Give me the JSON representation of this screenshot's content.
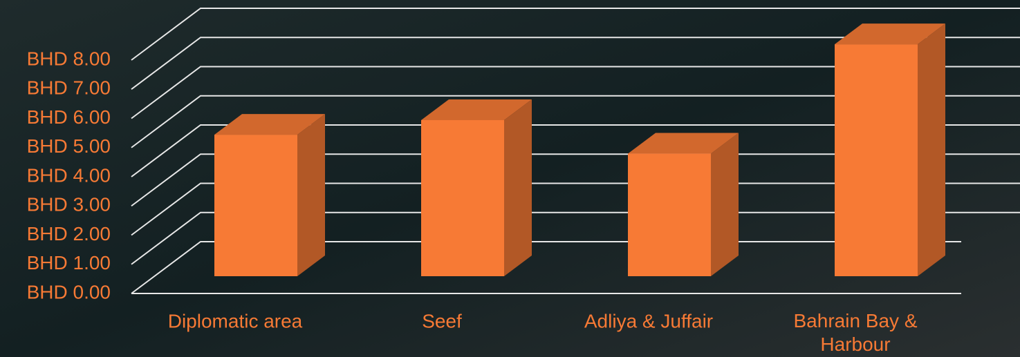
{
  "chart_data": {
    "type": "bar3d",
    "categories": [
      "Diplomatic area",
      "Seef",
      "Adliya & Juffair",
      "Bahrain Bay & Harbour"
    ],
    "values": [
      4.85,
      5.35,
      4.2,
      7.95
    ],
    "color": "#f77a35",
    "ylim": [
      0,
      8
    ],
    "yticks": [
      {
        "value": 0,
        "label": "BHD 0.00"
      },
      {
        "value": 1,
        "label": "BHD 1.00"
      },
      {
        "value": 2,
        "label": "BHD 2.00"
      },
      {
        "value": 3,
        "label": "BHD 3.00"
      },
      {
        "value": 4,
        "label": "BHD 4.00"
      },
      {
        "value": 5,
        "label": "BHD 5.00"
      },
      {
        "value": 6,
        "label": "BHD 6.00"
      },
      {
        "value": 7,
        "label": "BHD 7.00"
      },
      {
        "value": 8,
        "label": "BHD 8.00"
      }
    ],
    "grid": true
  }
}
